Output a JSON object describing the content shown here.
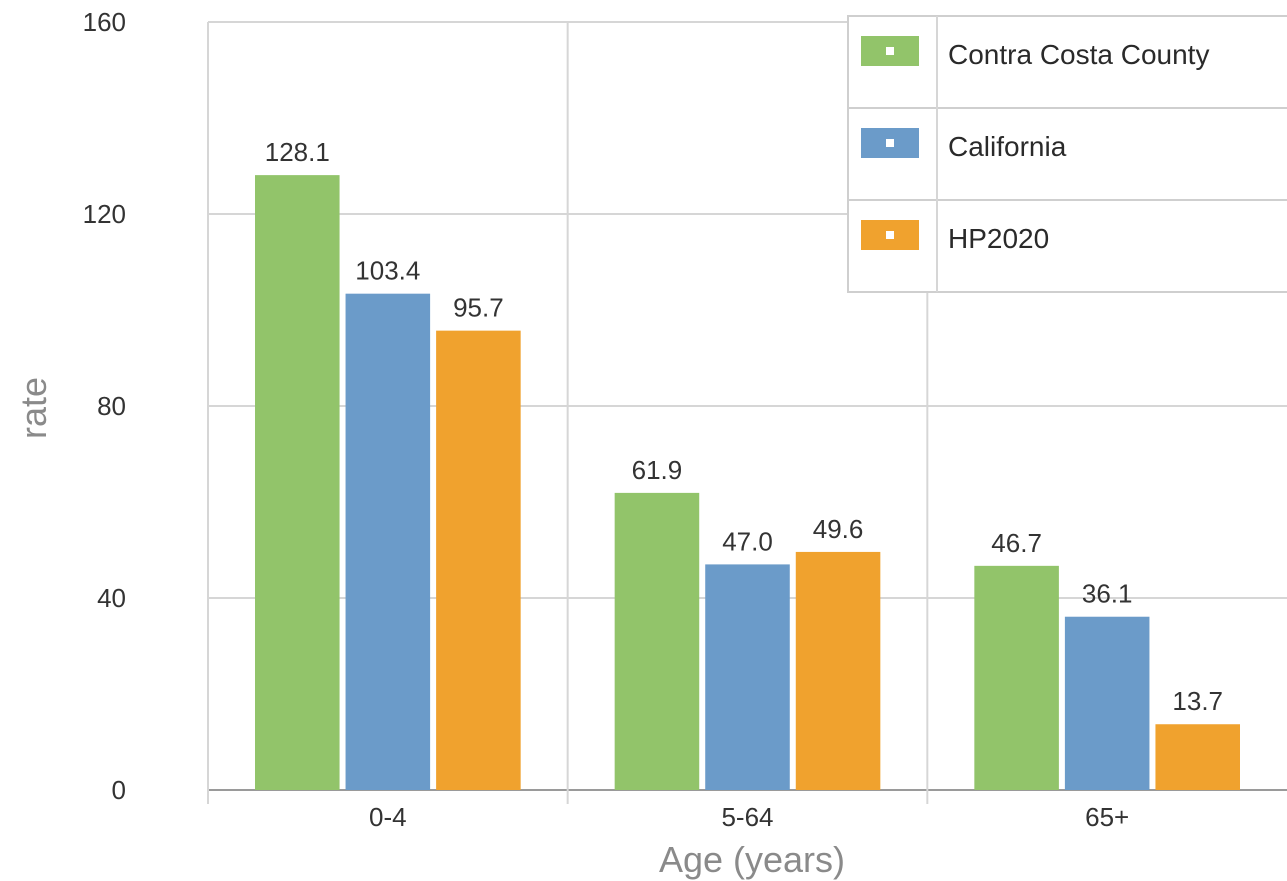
{
  "chart_data": {
    "type": "bar",
    "categories": [
      "0-4",
      "5-64",
      "65+"
    ],
    "series": [
      {
        "name": "Contra Costa County",
        "color": "#92c46a",
        "values": [
          128.1,
          61.9,
          46.7
        ],
        "labels": [
          "128.1",
          "61.9",
          "46.7"
        ]
      },
      {
        "name": "California",
        "color": "#6b9bc9",
        "values": [
          103.4,
          47.0,
          36.1
        ],
        "labels": [
          "103.4",
          "47.0",
          "36.1"
        ]
      },
      {
        "name": "HP2020",
        "color": "#f0a22e",
        "values": [
          95.7,
          49.6,
          13.7
        ],
        "labels": [
          "95.7",
          "49.6",
          "13.7"
        ]
      }
    ],
    "xlabel": "Age (years)",
    "ylabel": "rate",
    "ylim": [
      0,
      160
    ],
    "yticks": [
      0,
      40,
      80,
      120,
      160
    ],
    "ytick_labels": [
      "0",
      "40",
      "80",
      "120",
      "160"
    ],
    "grid": true,
    "legend_position": "top-right"
  }
}
